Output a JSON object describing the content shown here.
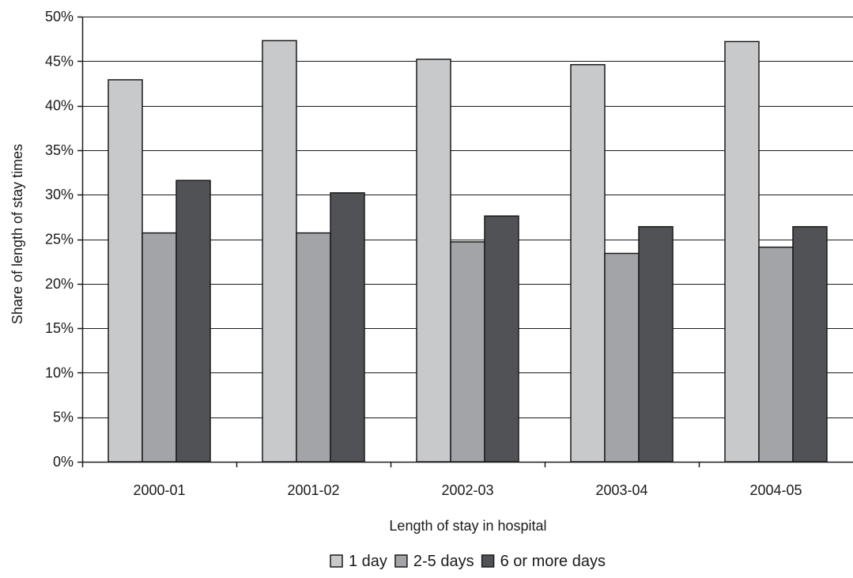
{
  "chart_data": {
    "type": "bar",
    "title": "",
    "xlabel": "Length of stay in hospital",
    "ylabel": "Share of length of stay times",
    "categories": [
      "2000-01",
      "2001-02",
      "2002-03",
      "2003-04",
      "2004-05"
    ],
    "series": [
      {
        "name": "1 day",
        "color": "#c8c9cb",
        "values": [
          42.9,
          47.3,
          45.2,
          44.6,
          47.2
        ]
      },
      {
        "name": "2-5 days",
        "color": "#a3a4a8",
        "values": [
          25.7,
          25.7,
          24.7,
          23.4,
          24.1
        ]
      },
      {
        "name": "6 or more days",
        "color": "#505255",
        "values": [
          31.6,
          30.2,
          27.6,
          26.4,
          26.4
        ]
      }
    ],
    "ylim": [
      0,
      50
    ],
    "yticks": [
      0,
      5,
      10,
      15,
      20,
      25,
      30,
      35,
      40,
      45,
      50
    ],
    "ytick_labels": [
      "0%",
      "5%",
      "10%",
      "15%",
      "20%",
      "25%",
      "30%",
      "35%",
      "40%",
      "45%",
      "50%"
    ],
    "grid": true,
    "legend_position": "bottom-center",
    "colors": {
      "gridline": "#1a1a1a",
      "bar_outline": "#1a1a1a",
      "axis": "#1a1a1a"
    }
  }
}
